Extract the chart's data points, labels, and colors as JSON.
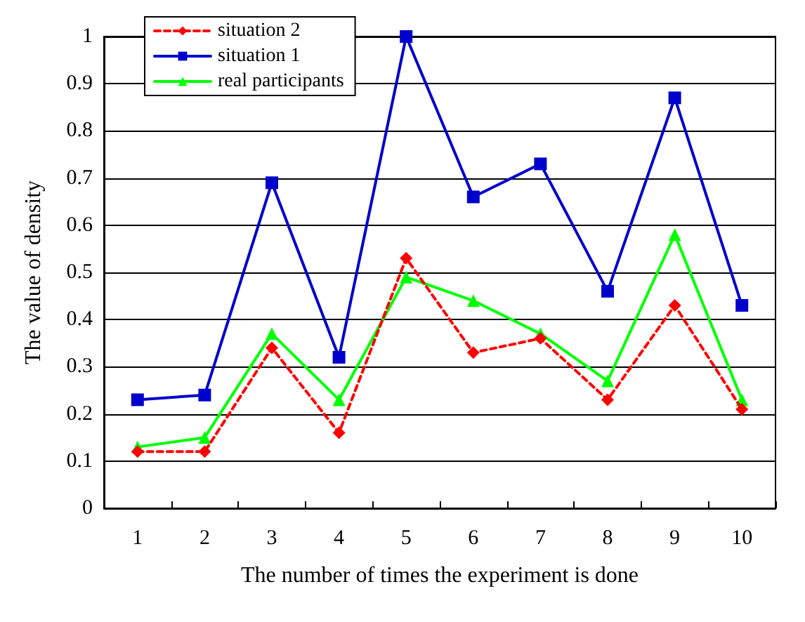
{
  "chart_data": {
    "type": "line",
    "xlabel": "The number of times the experiment is done",
    "ylabel": "The value of density",
    "categories": [
      "1",
      "2",
      "3",
      "4",
      "5",
      "6",
      "7",
      "8",
      "9",
      "10"
    ],
    "series": [
      {
        "name": "situation 2",
        "color": "#ff0000",
        "marker": "diamond",
        "line_style": "dashed",
        "values": [
          0.12,
          0.12,
          0.34,
          0.16,
          0.53,
          0.33,
          0.36,
          0.23,
          0.43,
          0.21
        ]
      },
      {
        "name": "situation 1",
        "color": "#0000cc",
        "marker": "square",
        "line_style": "solid",
        "values": [
          0.23,
          0.24,
          0.69,
          0.32,
          1.0,
          0.66,
          0.73,
          0.46,
          0.87,
          0.43
        ]
      },
      {
        "name": "real participants",
        "color": "#00ff00",
        "marker": "triangle",
        "line_style": "solid",
        "values": [
          0.13,
          0.15,
          0.37,
          0.23,
          0.49,
          0.44,
          0.37,
          0.27,
          0.58,
          0.23
        ]
      }
    ],
    "ylim": [
      0,
      1
    ],
    "yticks": [
      0,
      0.1,
      0.2,
      0.3,
      0.4,
      0.5,
      0.6,
      0.7,
      0.8,
      0.9,
      1
    ],
    "grid": "y",
    "legend": "top left"
  }
}
